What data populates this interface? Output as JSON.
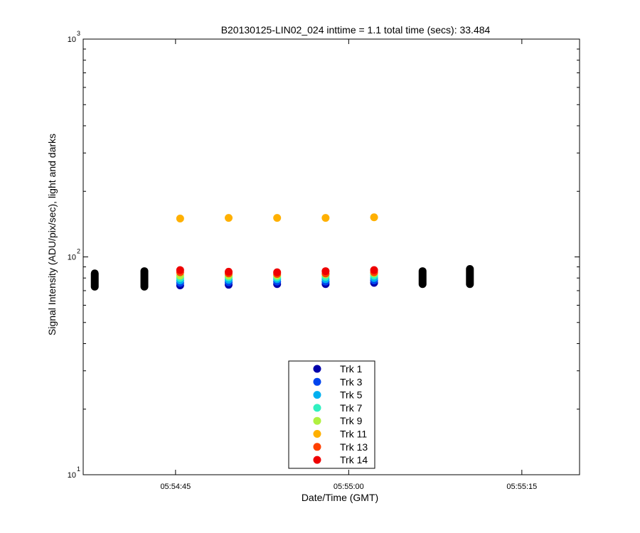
{
  "chart_data": {
    "type": "scatter",
    "title": "B20130125-LIN02_024 inttime = 1.1 total time (secs): 33.484",
    "xlabel": "Date/Time (GMT)",
    "ylabel": "Signal Intensity (ADU/pix/sec), light and darks",
    "yscale": "log",
    "ylim": [
      10,
      1000
    ],
    "xlim": [
      "05:54:37",
      "05:55:20"
    ],
    "x_ticks": [
      "05:54:45",
      "05:55:00",
      "05:55:15"
    ],
    "y_ticks": [
      {
        "base": "10",
        "exp": "1"
      },
      {
        "base": "10",
        "exp": "2"
      },
      {
        "base": "10",
        "exp": "3"
      }
    ],
    "legend_position": "bottom-center",
    "grid": false,
    "series": [
      {
        "name": "Trk 1",
        "color": "#0000aa",
        "x": [
          "05:54:45.4",
          "05:54:49.6",
          "05:54:53.8",
          "05:54:58.0",
          "05:55:02.2"
        ],
        "y": [
          74,
          74.5,
          75,
          75,
          76
        ]
      },
      {
        "name": "Trk 3",
        "color": "#0044ee",
        "x": [
          "05:54:45.4",
          "05:54:49.6",
          "05:54:53.8",
          "05:54:58.0",
          "05:55:02.2"
        ],
        "y": [
          76,
          76.5,
          77,
          77,
          78
        ]
      },
      {
        "name": "Trk 5",
        "color": "#00b0f0",
        "x": [
          "05:54:45.4",
          "05:54:49.6",
          "05:54:53.8",
          "05:54:58.0",
          "05:55:02.2"
        ],
        "y": [
          78,
          78.5,
          79,
          79,
          80
        ]
      },
      {
        "name": "Trk 7",
        "color": "#30f0c0",
        "x": [
          "05:54:45.4",
          "05:54:49.6",
          "05:54:53.8",
          "05:54:58.0",
          "05:55:02.2"
        ],
        "y": [
          80,
          80.5,
          80.5,
          81,
          82
        ]
      },
      {
        "name": "Trk 9",
        "color": "#b0f040",
        "x": [
          "05:54:45.4",
          "05:54:49.6",
          "05:54:53.8",
          "05:54:58.0",
          "05:55:02.2"
        ],
        "y": [
          82,
          82,
          82,
          83,
          84
        ]
      },
      {
        "name": "Trk 11",
        "color": "#ffb000",
        "x": [
          "05:54:45.4",
          "05:54:49.6",
          "05:54:53.8",
          "05:54:58.0",
          "05:55:02.2"
        ],
        "y": [
          150,
          151,
          151,
          151,
          152
        ]
      },
      {
        "name": "Trk 13",
        "color": "#ff4000",
        "x": [
          "05:54:45.4",
          "05:54:49.6",
          "05:54:53.8",
          "05:54:58.0",
          "05:55:02.2"
        ],
        "y": [
          85,
          84,
          83.5,
          84,
          85
        ]
      },
      {
        "name": "Trk 14",
        "color": "#ee0000",
        "x": [
          "05:54:45.4",
          "05:54:49.6",
          "05:54:53.8",
          "05:54:58.0",
          "05:55:02.2"
        ],
        "y": [
          87,
          85.5,
          85,
          86,
          87
        ]
      }
    ],
    "darks": {
      "color": "#000000",
      "x": [
        "05:54:38.0",
        "05:54:42.3",
        "05:55:06.4",
        "05:55:10.5"
      ],
      "y_min": [
        73,
        73,
        75,
        75
      ],
      "y_max": [
        84,
        86,
        86,
        88
      ]
    }
  }
}
